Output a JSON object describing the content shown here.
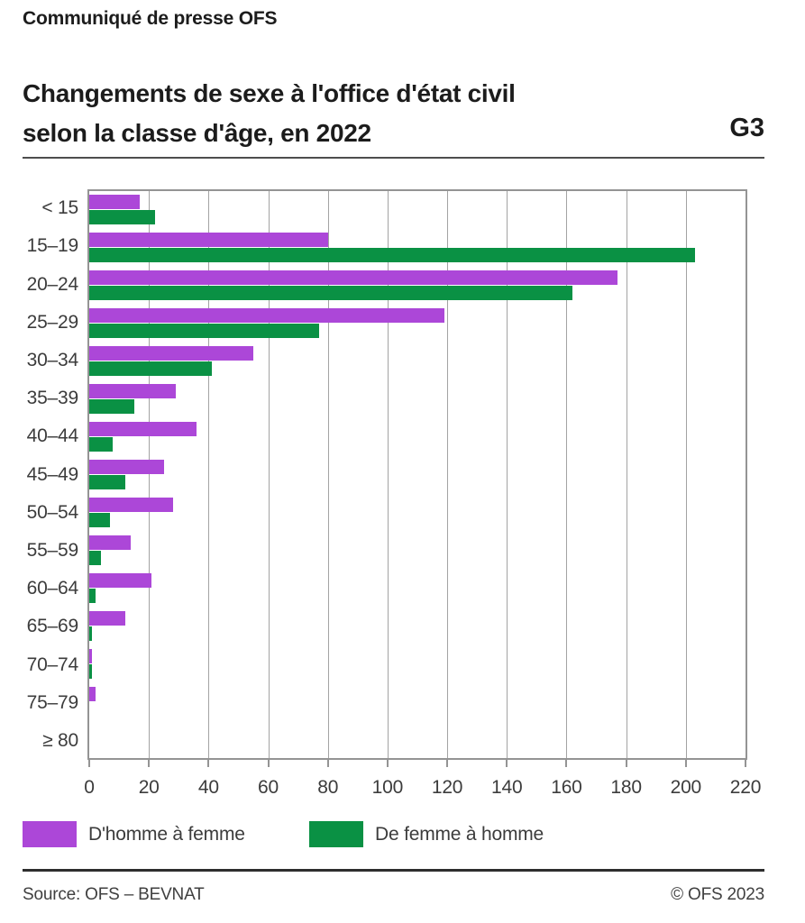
{
  "page": {
    "kicker": "Communiqué de presse OFS"
  },
  "title": {
    "line1": "Changements de sexe à l'office d'état civil",
    "line2": "selon la classe d'âge, en 2022",
    "figure_ref": "G3"
  },
  "chart_data": {
    "type": "bar",
    "orientation": "horizontal",
    "title": "Changements de sexe à l'office d'état civil selon la classe d'âge, en 2022",
    "categories": [
      "< 15",
      "15–19",
      "20–24",
      "25–29",
      "30–34",
      "35–39",
      "40–44",
      "45–49",
      "50–54",
      "55–59",
      "60–64",
      "65–69",
      "70–74",
      "75–79",
      "≥ 80"
    ],
    "series": [
      {
        "name": "D'homme à femme",
        "color": "#ac47d8",
        "values": [
          17,
          80,
          177,
          119,
          55,
          29,
          36,
          25,
          28,
          14,
          21,
          12,
          1,
          2,
          0
        ]
      },
      {
        "name": "De femme à homme",
        "color": "#0a9144",
        "values": [
          22,
          203,
          162,
          77,
          41,
          15,
          8,
          12,
          7,
          4,
          2,
          1,
          1,
          0,
          0
        ]
      }
    ],
    "xlim": [
      0,
      220
    ],
    "xticks": [
      0,
      20,
      40,
      60,
      80,
      100,
      120,
      140,
      160,
      180,
      200,
      220
    ],
    "grid": "vertical",
    "legend_position": "bottom",
    "plot_border_color": "#949494",
    "gridline_color": "#a3a3a3"
  },
  "footer": {
    "source": "Source: OFS – BEVNAT",
    "copyright": "© OFS 2023"
  }
}
